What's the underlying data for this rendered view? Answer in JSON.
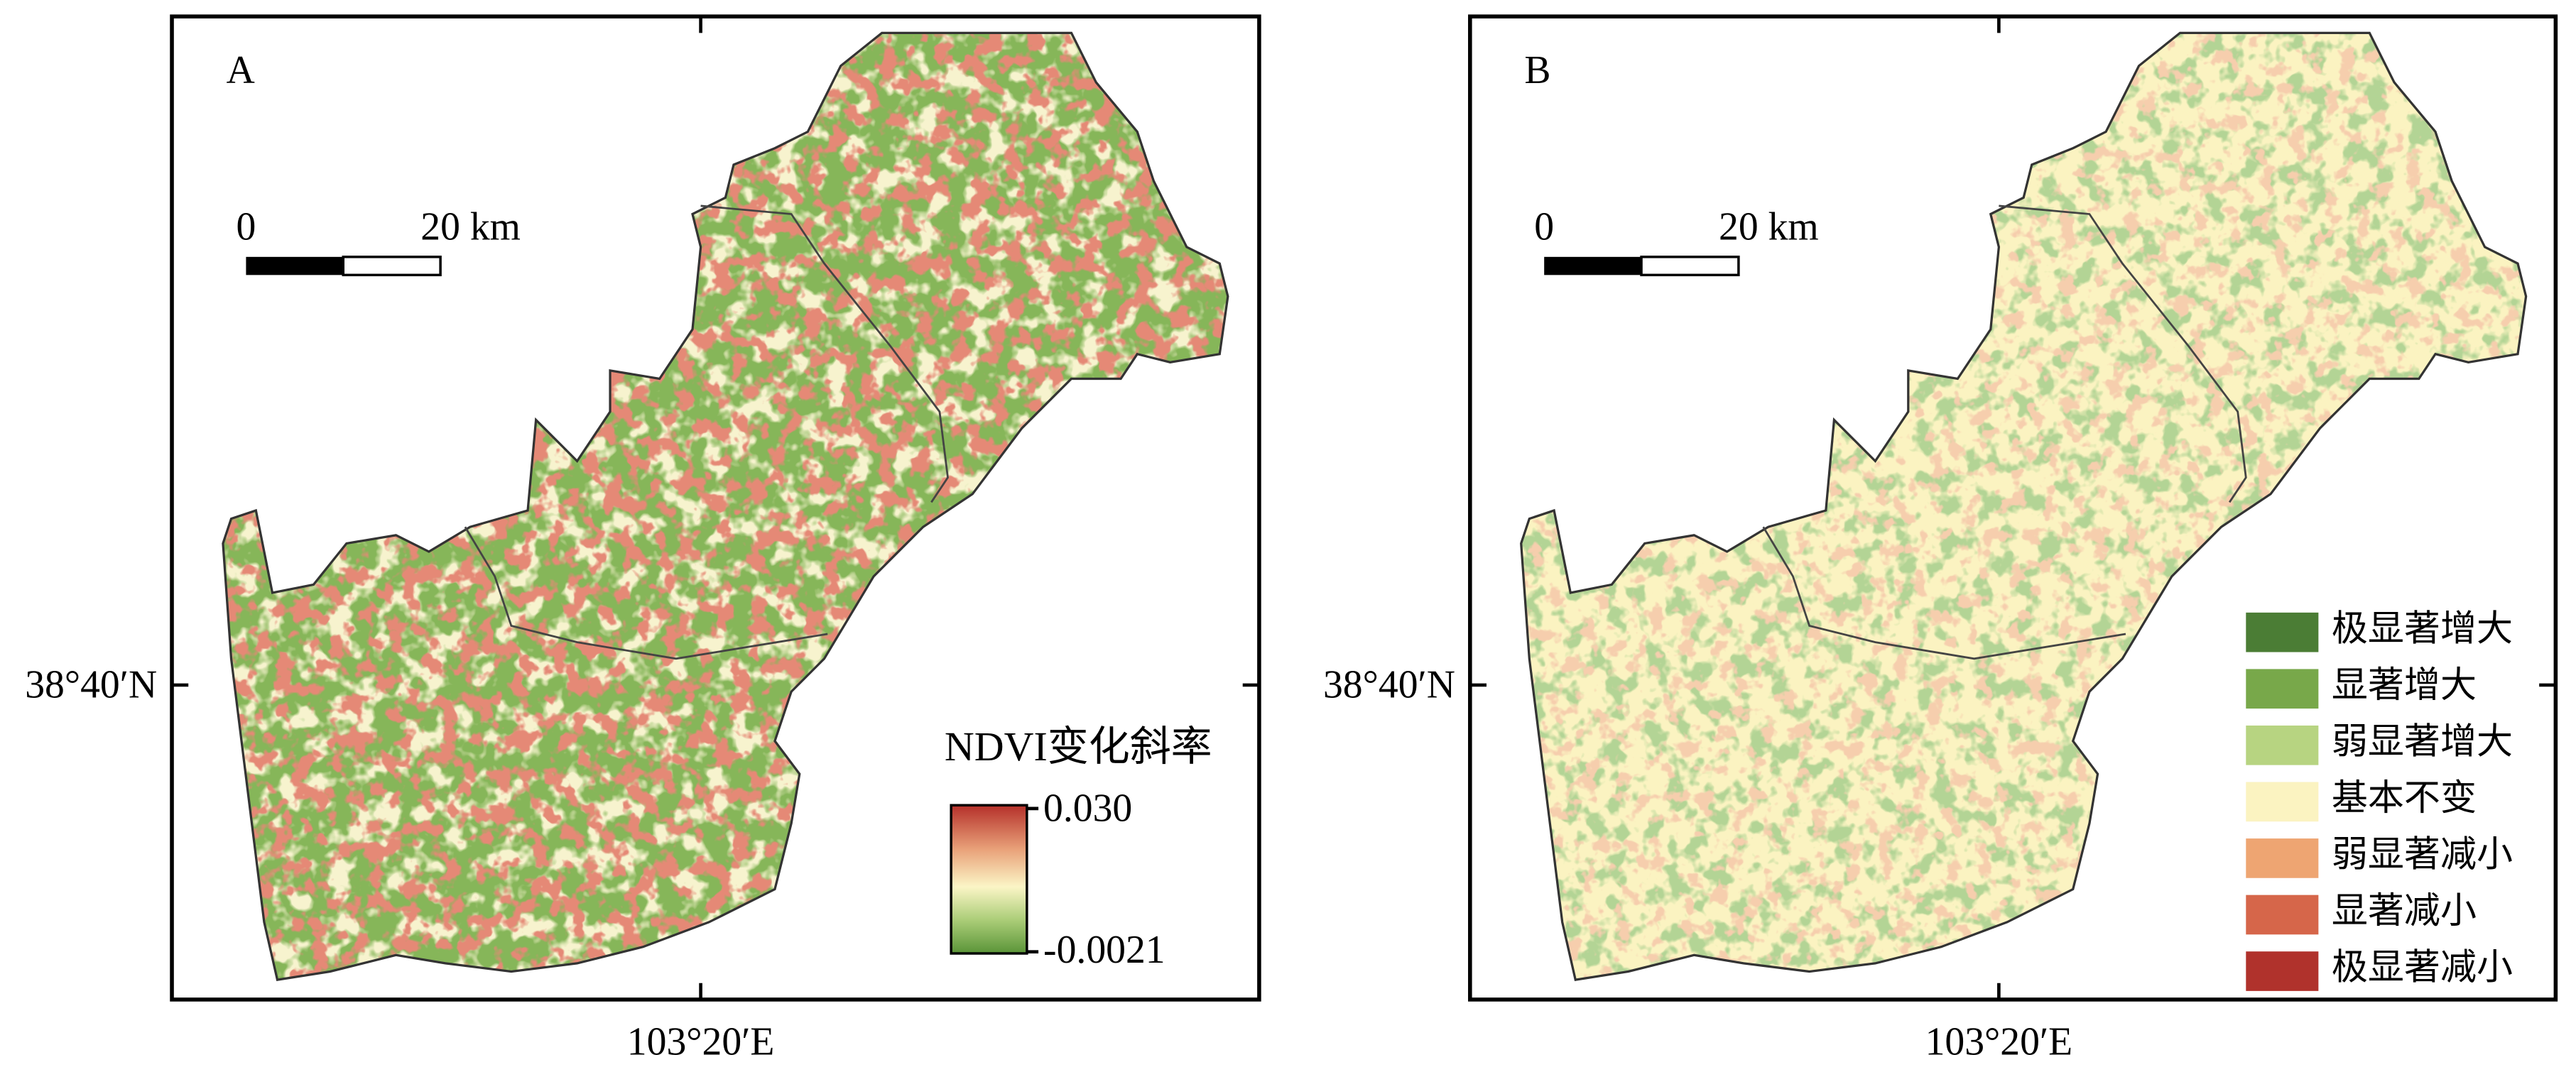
{
  "panels": [
    {
      "label": "A",
      "scale_bar": {
        "start": "0",
        "end": "20 km"
      },
      "latitude_label": "38°40′N",
      "longitude_label": "103°20′E",
      "legend": {
        "title": "NDVI变化斜率",
        "max_label": "0.030",
        "min_label": "-0.0021"
      }
    },
    {
      "label": "B",
      "scale_bar": {
        "start": "0",
        "end": "20 km"
      },
      "latitude_label": "38°40′N",
      "longitude_label": "103°20′E",
      "legend": {
        "items": [
          {
            "label": "极显著增大",
            "color": "#4b7d35"
          },
          {
            "label": "显著增大",
            "color": "#78a84a"
          },
          {
            "label": "弱显著增大",
            "color": "#b7d481"
          },
          {
            "label": "基本不变",
            "color": "#fbf3c1"
          },
          {
            "label": "弱显著减小",
            "color": "#eea572"
          },
          {
            "label": "显著减小",
            "color": "#d6664a"
          },
          {
            "label": "极显著减小",
            "color": "#b0322c"
          }
        ]
      }
    }
  ]
}
